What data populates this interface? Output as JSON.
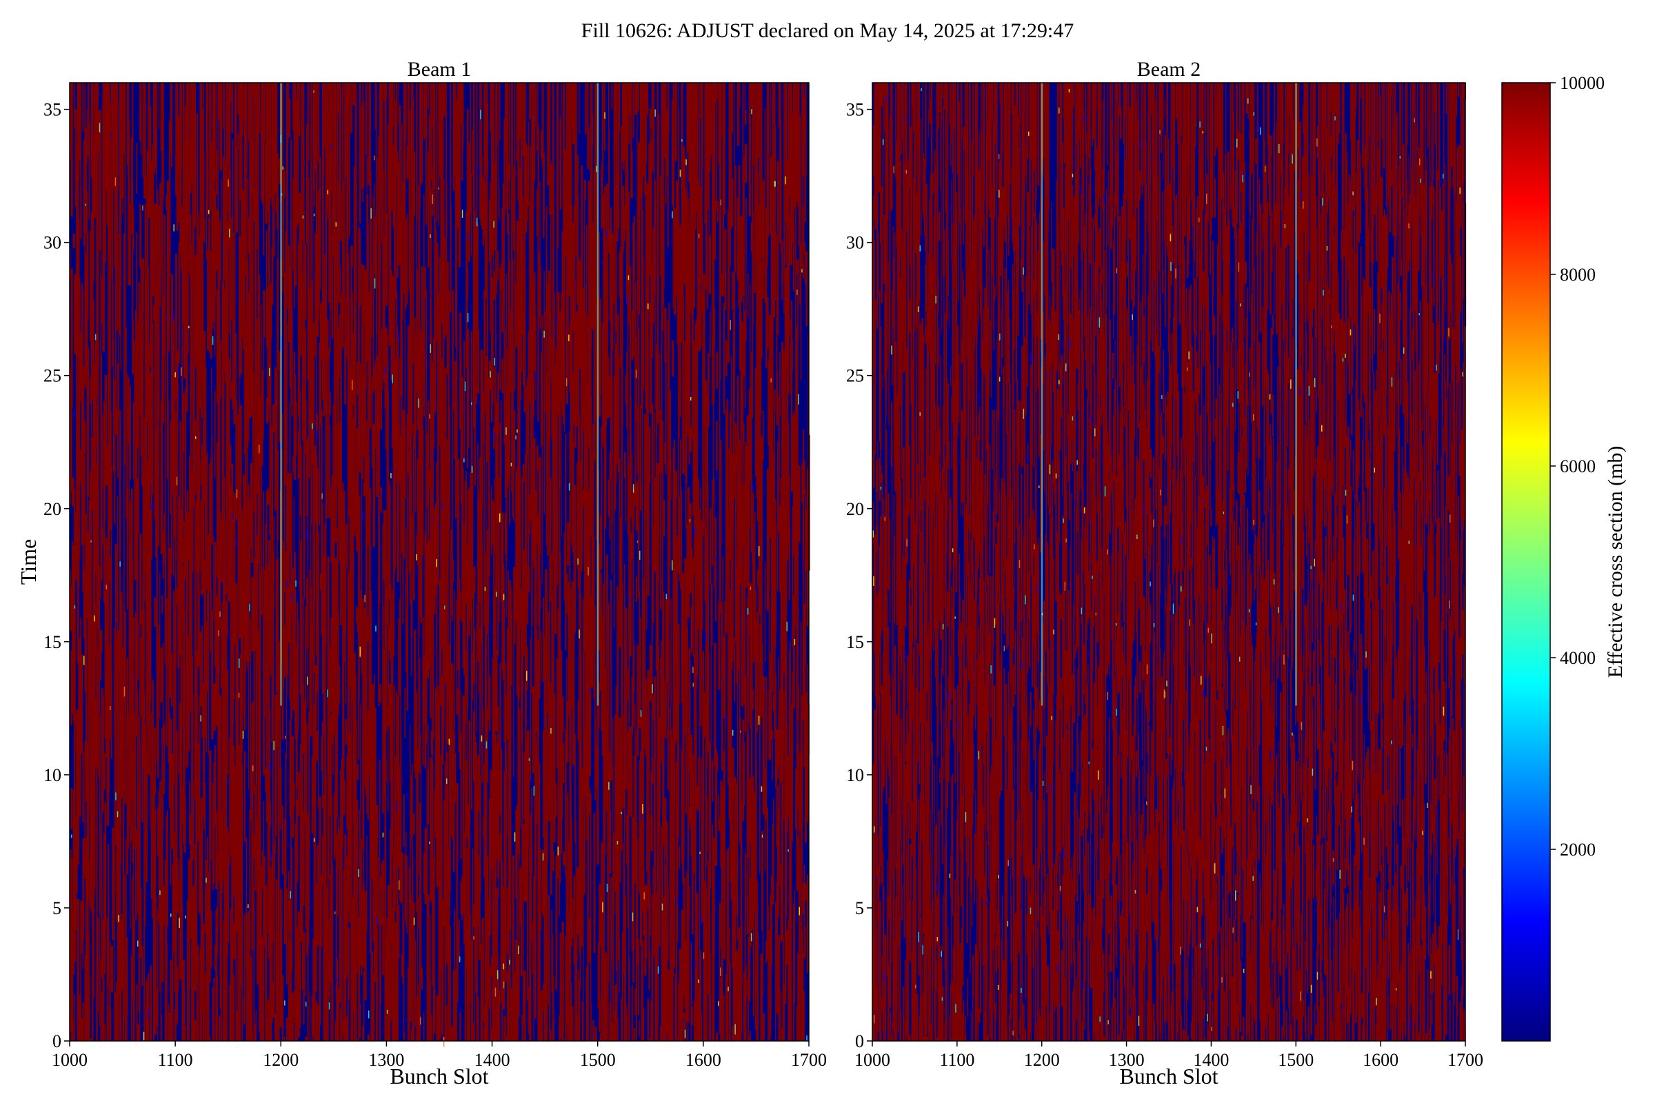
{
  "figure": {
    "title": "Fill 10626: ADJUST declared on May 14, 2025 at 17:29:47"
  },
  "chart_data": [
    {
      "type": "heatmap",
      "title": "Beam 1",
      "xlabel": "Bunch Slot",
      "ylabel": "Time",
      "xlim": [
        1000,
        1700
      ],
      "ylim": [
        0,
        36
      ],
      "xticks": [
        1000,
        1100,
        1200,
        1300,
        1400,
        1500,
        1600,
        1700
      ],
      "yticks": [
        0,
        5,
        10,
        15,
        20,
        25,
        30,
        35
      ],
      "value_range": [
        0,
        10000
      ],
      "pattern": "dense vertical streaks alternating between ~10000 (dark red) and ~0 (dark blue) across all bunch slots and times; faint cyan/yellow streaks near slots 1200 and 1500"
    },
    {
      "type": "heatmap",
      "title": "Beam 2",
      "xlabel": "Bunch Slot",
      "ylabel": "",
      "xlim": [
        1000,
        1700
      ],
      "ylim": [
        0,
        36
      ],
      "xticks": [
        1000,
        1100,
        1200,
        1300,
        1400,
        1500,
        1600,
        1700
      ],
      "yticks": [
        0,
        5,
        10,
        15,
        20,
        25,
        30,
        35
      ],
      "value_range": [
        0,
        10000
      ],
      "pattern": "dense vertical streaks alternating between ~10000 (dark red) and ~0 (dark blue) across all bunch slots and times; faint streaks near slots 1200 and 1500"
    }
  ],
  "colorbar": {
    "label": "Effective cross section (mb)",
    "min": 0,
    "max": 10000,
    "ticks": [
      2000,
      4000,
      6000,
      8000,
      10000
    ],
    "colormap": "jet",
    "colors": [
      "#00007f",
      "#0000ff",
      "#007fff",
      "#00ffff",
      "#7fff7f",
      "#ffff00",
      "#ff7f00",
      "#ff0000",
      "#7f0000"
    ]
  }
}
